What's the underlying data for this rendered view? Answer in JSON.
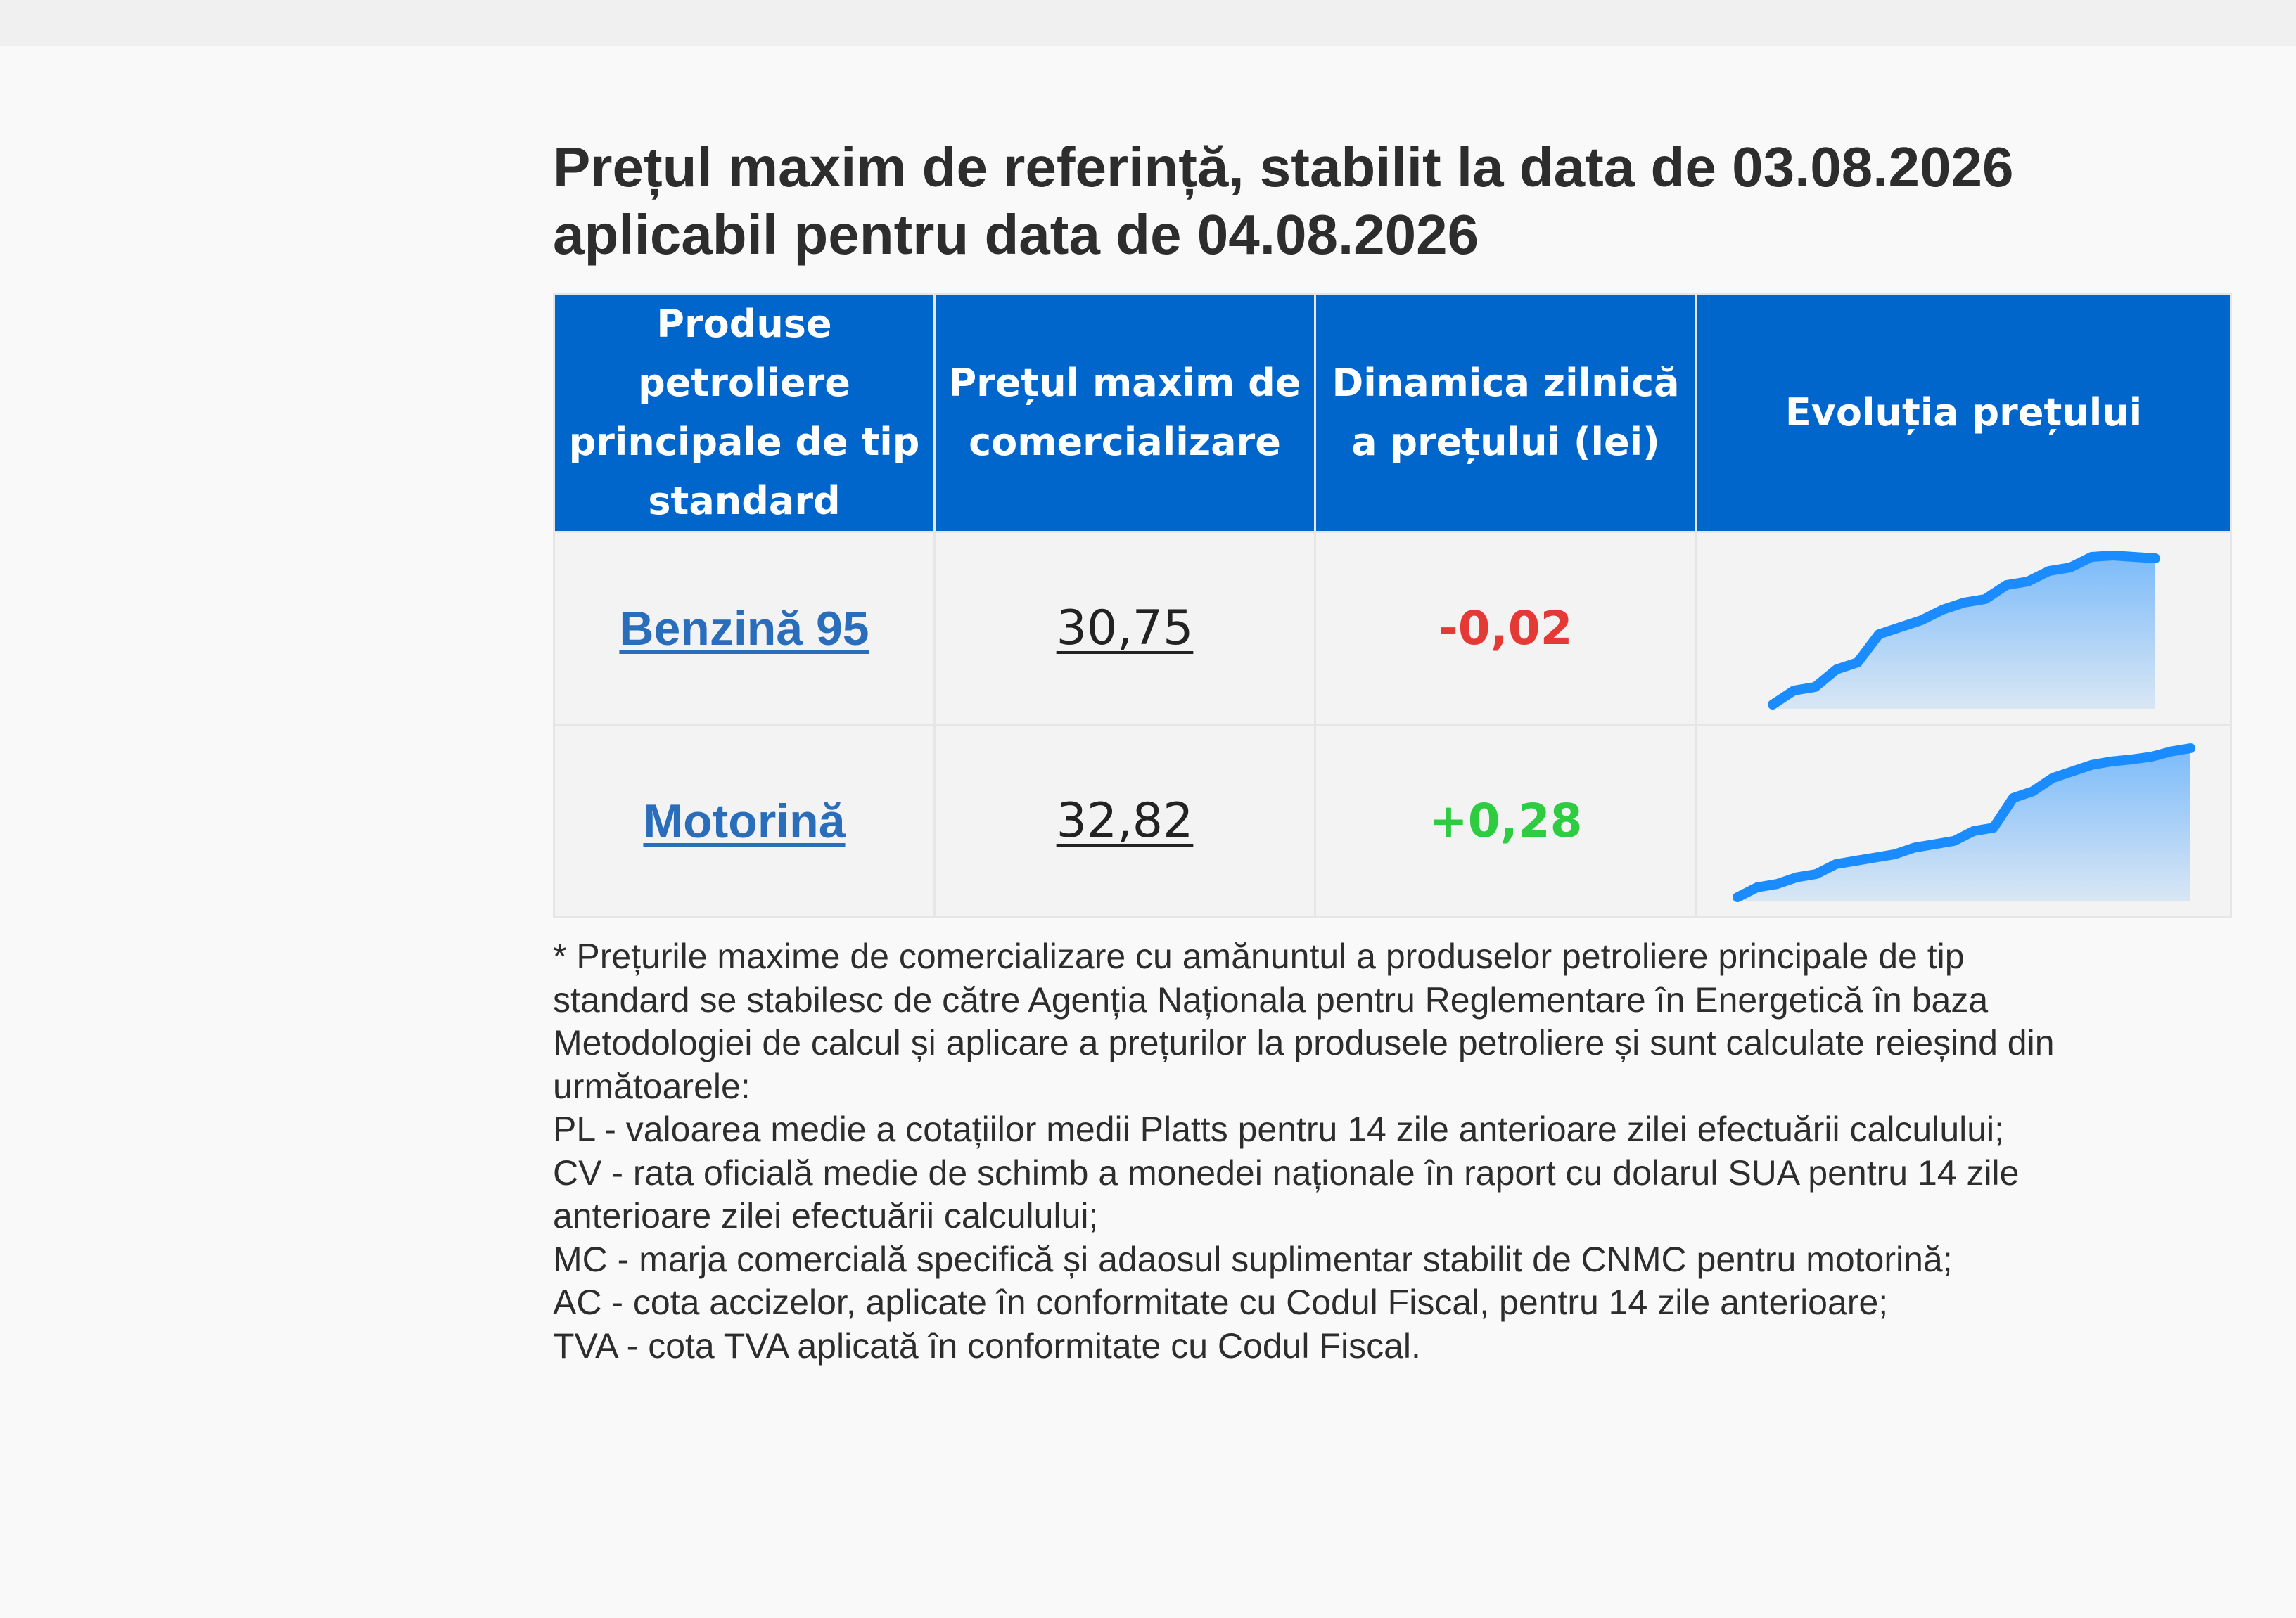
{
  "page": {
    "title_line1": "Prețul maxim de referință, stabilit la data de 03.08.2026",
    "title_line2": "aplicabil pentru data de 04.08.2026"
  },
  "table": {
    "headers": [
      "Produse petroliere principale de tip standard",
      "Prețul maxim de comercializare",
      "Dinamica zilnică a prețului (lei)",
      "Evoluția prețului"
    ],
    "rows": [
      {
        "product": "Benzină 95",
        "price": "30,75",
        "change": "-0,02",
        "change_color": "#e53935",
        "trend": [
          17.6,
          17.8,
          17.85,
          18.1,
          18.2,
          18.6,
          18.7,
          18.8,
          18.95,
          19.05,
          19.1,
          19.3,
          19.35,
          19.5,
          19.55,
          19.7,
          19.72,
          19.7,
          19.68
        ]
      },
      {
        "product": "Motorină",
        "price": "32,82",
        "change": "+0,28",
        "change_color": "#2ecc40",
        "trend": [
          17.5,
          17.65,
          17.7,
          17.8,
          17.85,
          18.0,
          18.05,
          18.1,
          18.15,
          18.25,
          18.3,
          18.35,
          18.5,
          18.55,
          19.0,
          19.1,
          19.3,
          19.4,
          19.5,
          19.55,
          19.58,
          19.62,
          19.7,
          19.75
        ]
      }
    ]
  },
  "footnote": {
    "lines": [
      "* Prețurile maxime de comercializare cu amănuntul a produselor petroliere principale de tip",
      "standard se stabilesc de către Agenția Naționala pentru Reglementare în Energetică în baza",
      "Metodologiei de calcul și aplicare a prețurilor la produsele petroliere și sunt calculate reieșind din",
      "următoarele:",
      "PL - valoarea medie a cotațiilor medii Platts pentru 14 zile anterioare zilei efectuării calculului;",
      "CV - rata oficială medie de schimb a monedei naționale în raport cu dolarul SUA pentru 14 zile",
      "anterioare zilei efectuării calculului;",
      "MC - marja comercială specifică și adaosul suplimentar stabilit de CNMC pentru motorină;",
      "AC - cota accizelor, aplicate în conformitate cu Codul Fiscal, pentru 14 zile anterioare;",
      "TVA - cota TVA aplicată în conformitate cu Codul Fiscal."
    ]
  },
  "colors": {
    "header_bg": "#0066cc",
    "sparkline_stroke": "#1a8cff"
  }
}
